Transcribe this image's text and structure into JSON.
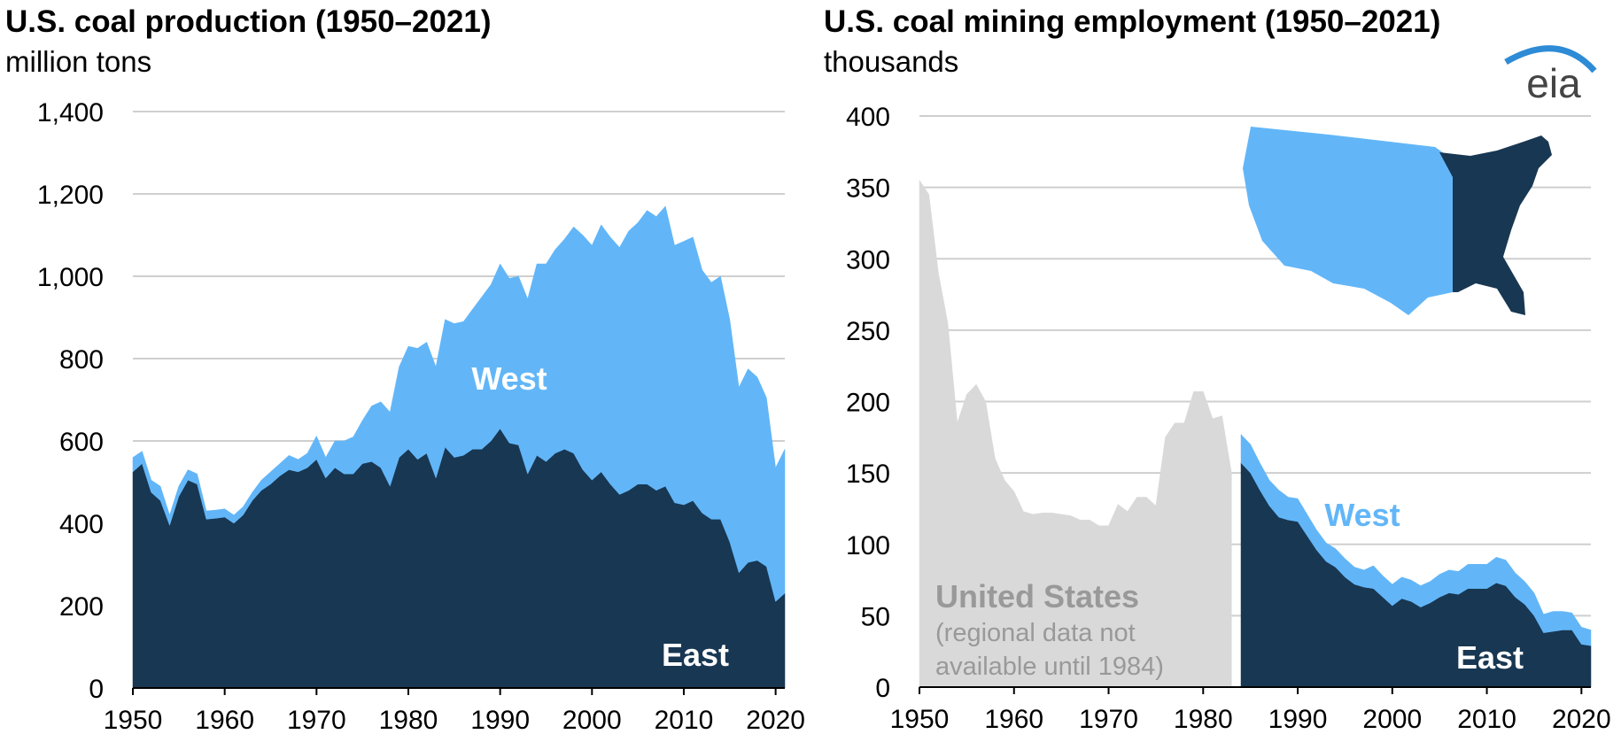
{
  "chart_data": [
    {
      "type": "area",
      "stacked": true,
      "title": "U.S. coal production (1950–2021)",
      "subtitle": "million tons",
      "x": [
        1950,
        1951,
        1952,
        1953,
        1954,
        1955,
        1956,
        1957,
        1958,
        1959,
        1960,
        1961,
        1962,
        1963,
        1964,
        1965,
        1966,
        1967,
        1968,
        1969,
        1970,
        1971,
        1972,
        1973,
        1974,
        1975,
        1976,
        1977,
        1978,
        1979,
        1980,
        1981,
        1982,
        1983,
        1984,
        1985,
        1986,
        1987,
        1988,
        1989,
        1990,
        1991,
        1992,
        1993,
        1994,
        1995,
        1996,
        1997,
        1998,
        1999,
        2000,
        2001,
        2002,
        2003,
        2004,
        2005,
        2006,
        2007,
        2008,
        2009,
        2010,
        2011,
        2012,
        2013,
        2014,
        2015,
        2016,
        2017,
        2018,
        2019,
        2020,
        2021
      ],
      "series": [
        {
          "name": "East",
          "color": "#183752",
          "values": [
            525,
            545,
            475,
            455,
            395,
            465,
            505,
            495,
            410,
            412,
            415,
            400,
            420,
            455,
            480,
            495,
            515,
            530,
            525,
            535,
            555,
            510,
            535,
            520,
            520,
            545,
            550,
            535,
            490,
            560,
            580,
            555,
            570,
            510,
            585,
            560,
            565,
            580,
            580,
            600,
            630,
            595,
            590,
            520,
            565,
            550,
            570,
            580,
            570,
            530,
            505,
            525,
            495,
            470,
            480,
            495,
            495,
            480,
            490,
            450,
            445,
            455,
            425,
            410,
            410,
            355,
            280,
            305,
            310,
            295,
            210,
            230
          ]
        },
        {
          "name": "West",
          "color": "#62b6f8",
          "values": [
            35,
            30,
            30,
            35,
            25,
            25,
            25,
            25,
            20,
            20,
            20,
            20,
            20,
            20,
            25,
            30,
            30,
            35,
            30,
            35,
            57,
            50,
            65,
            80,
            90,
            105,
            135,
            160,
            180,
            220,
            250,
            270,
            270,
            270,
            310,
            325,
            325,
            340,
            370,
            380,
            400,
            400,
            410,
            425,
            465,
            480,
            495,
            510,
            550,
            570,
            570,
            600,
            600,
            600,
            630,
            635,
            665,
            665,
            680,
            625,
            640,
            640,
            590,
            575,
            590,
            540,
            450,
            470,
            445,
            410,
            325,
            350
          ]
        }
      ],
      "xlim": [
        1950,
        2021
      ],
      "xticks": [
        1950,
        1960,
        1970,
        1980,
        1990,
        2000,
        2010,
        2020
      ],
      "ylim": [
        0,
        1400
      ],
      "yticks": [
        0,
        200,
        400,
        600,
        800,
        {
          "value": 1000,
          "label": "1,000"
        },
        {
          "value": 1200,
          "label": "1,200"
        },
        {
          "value": 1400,
          "label": "1,400"
        }
      ],
      "grid": true
    },
    {
      "type": "area",
      "stacked": true,
      "title": "U.S. coal mining employment (1950–2021)",
      "subtitle": "thousands",
      "x": [
        1950,
        1951,
        1952,
        1953,
        1954,
        1955,
        1956,
        1957,
        1958,
        1959,
        1960,
        1961,
        1962,
        1963,
        1964,
        1965,
        1966,
        1967,
        1968,
        1969,
        1970,
        1971,
        1972,
        1973,
        1974,
        1975,
        1976,
        1977,
        1978,
        1979,
        1980,
        1981,
        1982,
        1983,
        1984,
        1985,
        1986,
        1987,
        1988,
        1989,
        1990,
        1991,
        1992,
        1993,
        1994,
        1995,
        1996,
        1997,
        1998,
        1999,
        2000,
        2001,
        2002,
        2003,
        2004,
        2005,
        2006,
        2007,
        2008,
        2009,
        2010,
        2011,
        2012,
        2013,
        2014,
        2015,
        2016,
        2017,
        2018,
        2019,
        2020,
        2021
      ],
      "series": [
        {
          "name": "United States",
          "color": "#d9d9d9",
          "values": [
            355,
            345,
            290,
            255,
            185,
            205,
            212,
            200,
            160,
            145,
            137,
            123,
            121,
            122,
            122,
            121,
            120,
            117,
            117,
            113,
            113,
            128,
            123,
            133,
            133,
            127,
            175,
            185,
            185,
            207,
            207,
            188,
            190,
            150,
            null,
            null,
            null,
            null,
            null,
            null,
            null,
            null,
            null,
            null,
            null,
            null,
            null,
            null,
            null,
            null,
            null,
            null,
            null,
            null,
            null,
            null,
            null,
            null,
            null,
            null,
            null,
            null,
            null,
            null,
            null,
            null,
            null,
            null,
            null,
            null,
            null,
            null
          ]
        },
        {
          "name": "East",
          "color": "#183752",
          "values": [
            null,
            null,
            null,
            null,
            null,
            null,
            null,
            null,
            null,
            null,
            null,
            null,
            null,
            null,
            null,
            null,
            null,
            null,
            null,
            null,
            null,
            null,
            null,
            null,
            null,
            null,
            null,
            null,
            null,
            null,
            null,
            null,
            null,
            null,
            157,
            150,
            138,
            127,
            119,
            117,
            116,
            106,
            96,
            88,
            84,
            77,
            72,
            70,
            69,
            63,
            57,
            62,
            60,
            56,
            59,
            63,
            66,
            65,
            69,
            69,
            69,
            73,
            71,
            63,
            58,
            50,
            38,
            39,
            40,
            40,
            30,
            29
          ]
        },
        {
          "name": "West",
          "color": "#62b6f8",
          "values": [
            null,
            null,
            null,
            null,
            null,
            null,
            null,
            null,
            null,
            null,
            null,
            null,
            null,
            null,
            null,
            null,
            null,
            null,
            null,
            null,
            null,
            null,
            null,
            null,
            null,
            null,
            null,
            null,
            null,
            null,
            null,
            null,
            null,
            null,
            20,
            20,
            19,
            18,
            19,
            16,
            16,
            15,
            14,
            13,
            13,
            13,
            12,
            12,
            16,
            15,
            15,
            15,
            15,
            15,
            15,
            16,
            16,
            16,
            17,
            17,
            17,
            18,
            18,
            17,
            16,
            16,
            13,
            14,
            13,
            12,
            12,
            11
          ]
        }
      ],
      "annotations": [
        "(regional data not",
        "available until 1984)"
      ],
      "xlim": [
        1950,
        2021
      ],
      "xticks": [
        1950,
        1960,
        1970,
        1980,
        1990,
        2000,
        2010,
        2020
      ],
      "ylim": [
        0,
        400
      ],
      "yticks": [
        0,
        50,
        100,
        150,
        200,
        250,
        300,
        350,
        400
      ],
      "grid": true
    }
  ],
  "logo": "eia"
}
